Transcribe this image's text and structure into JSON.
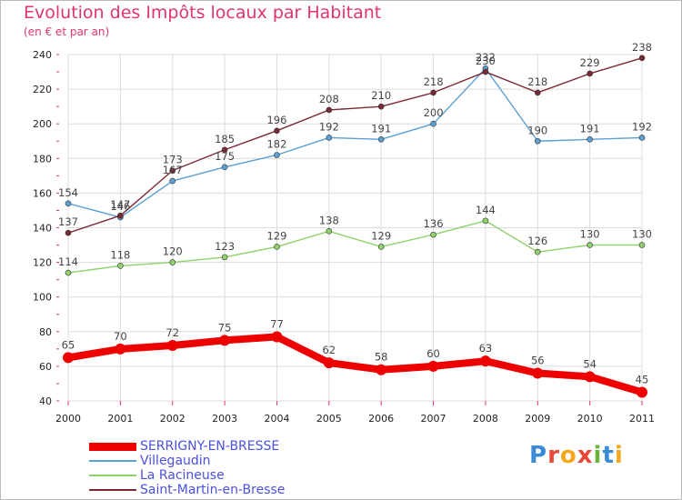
{
  "header": {
    "title": "Evolution des Impôts locaux par Habitant",
    "subtitle": "(en € et par an)"
  },
  "logo": {
    "text": "Proxiti"
  },
  "colors": {
    "title": "#e0346e",
    "grid": "#dcdcdc",
    "legend_text": "#4a50e0"
  },
  "chart_data": {
    "type": "line",
    "title": "Evolution des Impôts locaux par Habitant",
    "subtitle": "(en € et par an)",
    "x": [
      "2000",
      "2001",
      "2002",
      "2003",
      "2004",
      "2005",
      "2006",
      "2007",
      "2008",
      "2009",
      "2010",
      "2011"
    ],
    "ylim": [
      40,
      240
    ],
    "yticks": [
      40,
      60,
      80,
      100,
      120,
      140,
      160,
      180,
      200,
      220,
      240
    ],
    "grid": true,
    "legend_position": "bottom-left",
    "series": [
      {
        "name": "SERRIGNY-EN-BRESSE",
        "color": "#ee0000",
        "values": [
          65,
          70,
          72,
          75,
          77,
          62,
          58,
          60,
          63,
          56,
          54,
          45
        ]
      },
      {
        "name": "Villegaudin",
        "color": "#5b9fd3",
        "values": [
          154,
          146,
          167,
          175,
          182,
          192,
          191,
          200,
          232,
          190,
          191,
          192
        ]
      },
      {
        "name": "La Racineuse",
        "color": "#8fd16a",
        "values": [
          114,
          118,
          120,
          123,
          129,
          138,
          129,
          136,
          144,
          126,
          130,
          130
        ]
      },
      {
        "name": "Saint-Martin-en-Bresse",
        "color": "#7a2a35",
        "values": [
          137,
          147,
          173,
          185,
          196,
          208,
          210,
          218,
          230,
          218,
          229,
          238
        ]
      }
    ]
  }
}
